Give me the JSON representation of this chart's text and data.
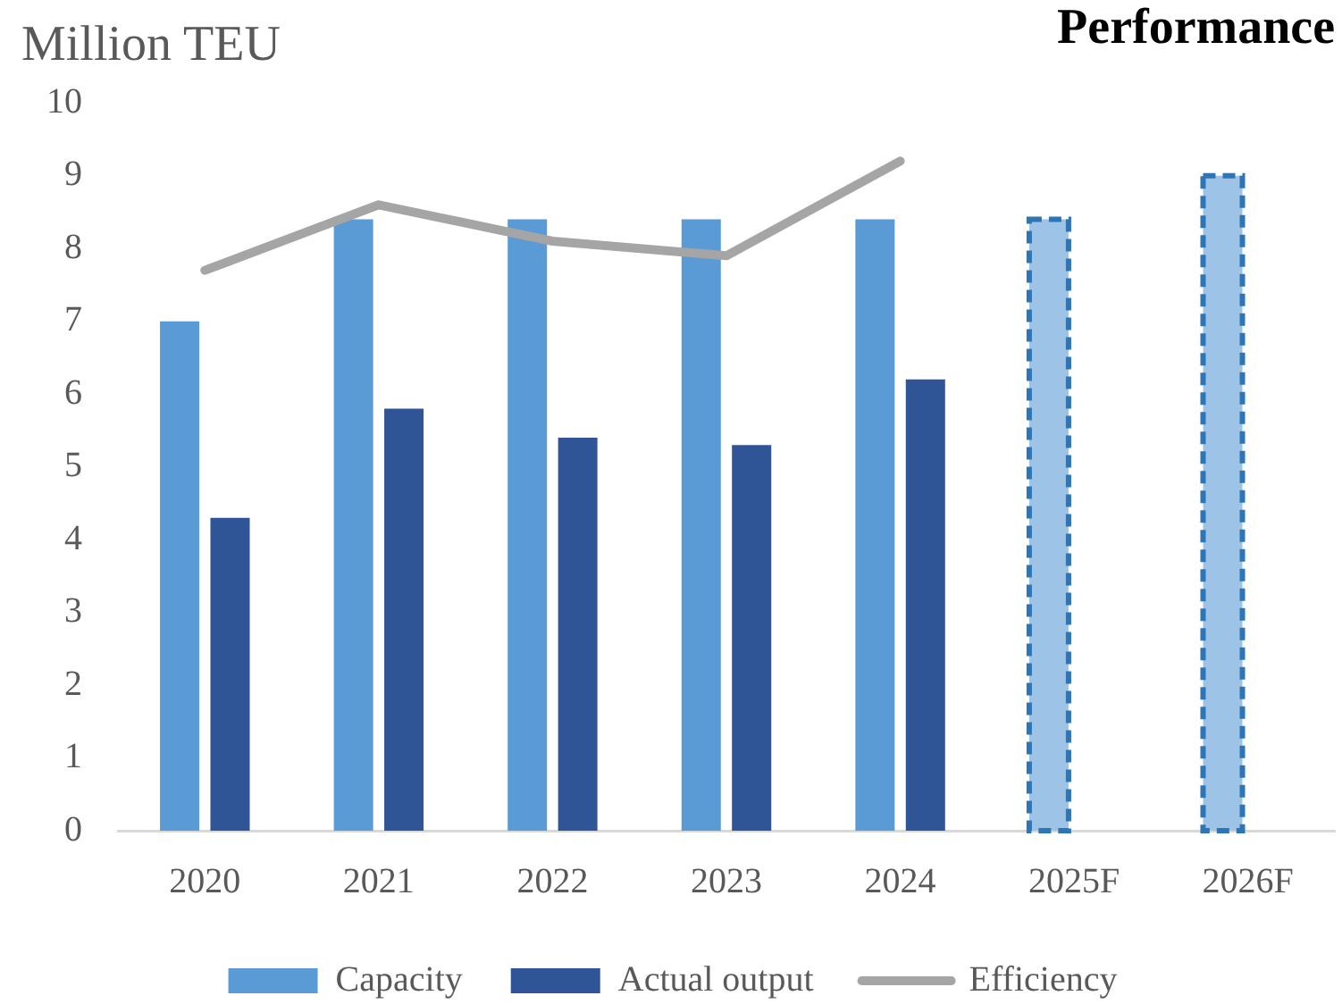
{
  "chart_data": {
    "type": "bar",
    "title": "Performance",
    "ylabel": "Million TEU",
    "categories": [
      "2020",
      "2021",
      "2022",
      "2023",
      "2024",
      "2025F",
      "2026F"
    ],
    "series": [
      {
        "name": "Capacity",
        "color": "#5b9bd5",
        "colors": [
          "#5b9bd5",
          "#5b9bd5",
          "#5b9bd5",
          "#5b9bd5",
          "#5b9bd5",
          "#9dc3e6",
          "#9dc3e6"
        ],
        "values": [
          7,
          8.4,
          8.4,
          8.4,
          8.4,
          8.4,
          9
        ]
      },
      {
        "name": "Actual output",
        "color": "#2f5597",
        "values": [
          4.3,
          5.8,
          5.4,
          5.3,
          6.2,
          null,
          null
        ]
      },
      {
        "name": "Efficiency",
        "type": "line",
        "color": "#a5a5a5",
        "values": [
          7.7,
          8.6,
          8.1,
          7.9,
          9.2,
          null,
          null
        ]
      }
    ],
    "ylim": [
      0,
      10
    ],
    "yticks": [
      0,
      1,
      2,
      3,
      4,
      5,
      6,
      7,
      8,
      9,
      10
    ],
    "legend": "bottom"
  }
}
